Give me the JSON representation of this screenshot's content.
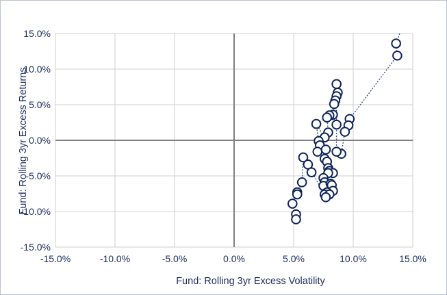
{
  "chart_data": {
    "type": "scatter",
    "title": "",
    "xlabel": "Fund: Rolling 3yr Excess Volatility",
    "ylabel": "Fund: Rolling 3yr Excess Returns",
    "xlim": [
      -15,
      15
    ],
    "ylim": [
      -15,
      15
    ],
    "x_ticks": [
      -15,
      -10,
      -5,
      0,
      5,
      10,
      15
    ],
    "y_ticks": [
      -15,
      -10,
      -5,
      0,
      5,
      10,
      15
    ],
    "x_tick_labels": [
      "-15.0%",
      "-10.0%",
      "-5.0%",
      "0.0%",
      "5.0%",
      "10.0%",
      "15.0%"
    ],
    "y_tick_labels": [
      "-15.0%",
      "-10.0%",
      "-5.0%",
      "0.0%",
      "5.0%",
      "10.0%",
      "15.0%"
    ],
    "grid": true,
    "legend": "none",
    "colors": {
      "marker": "#0d2358",
      "line": "#3a4f86",
      "grid": "#cfcfcf",
      "zero_axis": "#7f7f7f",
      "text": "#1a2a5c"
    },
    "connect_points": true,
    "points": [
      {
        "x": 13.6,
        "y": 13.6
      },
      {
        "x": 13.7,
        "y": 11.9
      },
      {
        "x": 9.7,
        "y": 3.0
      },
      {
        "x": 9.6,
        "y": 2.1
      },
      {
        "x": 9.3,
        "y": 1.2
      },
      {
        "x": 9.0,
        "y": -1.9
      },
      {
        "x": 8.6,
        "y": -1.6
      },
      {
        "x": 8.6,
        "y": 7.9
      },
      {
        "x": 8.7,
        "y": 6.7
      },
      {
        "x": 8.6,
        "y": 6.2
      },
      {
        "x": 8.5,
        "y": 5.6
      },
      {
        "x": 8.4,
        "y": 5.1
      },
      {
        "x": 8.3,
        "y": 3.6
      },
      {
        "x": 8.6,
        "y": 2.2
      },
      {
        "x": 8.0,
        "y": 3.5
      },
      {
        "x": 7.8,
        "y": 3.2
      },
      {
        "x": 7.9,
        "y": 1.1
      },
      {
        "x": 7.6,
        "y": 0.4
      },
      {
        "x": 6.9,
        "y": 2.3
      },
      {
        "x": 7.1,
        "y": -0.1
      },
      {
        "x": 7.2,
        "y": -0.7
      },
      {
        "x": 7.0,
        "y": -1.6
      },
      {
        "x": 7.7,
        "y": -1.3
      },
      {
        "x": 7.6,
        "y": -2.6
      },
      {
        "x": 7.8,
        "y": -3.0
      },
      {
        "x": 7.9,
        "y": -3.9
      },
      {
        "x": 8.0,
        "y": -4.3
      },
      {
        "x": 8.3,
        "y": -4.6
      },
      {
        "x": 7.9,
        "y": -4.6
      },
      {
        "x": 7.5,
        "y": -5.3
      },
      {
        "x": 7.6,
        "y": -5.9
      },
      {
        "x": 7.5,
        "y": -6.4
      },
      {
        "x": 8.1,
        "y": -6.1
      },
      {
        "x": 8.2,
        "y": -6.3
      },
      {
        "x": 8.3,
        "y": -7.1
      },
      {
        "x": 7.8,
        "y": -7.3
      },
      {
        "x": 7.6,
        "y": -7.6
      },
      {
        "x": 8.0,
        "y": -7.6
      },
      {
        "x": 7.7,
        "y": -8.0
      },
      {
        "x": 6.2,
        "y": -3.4
      },
      {
        "x": 6.5,
        "y": -4.5
      },
      {
        "x": 5.8,
        "y": -2.4
      },
      {
        "x": 5.7,
        "y": -5.9
      },
      {
        "x": 5.3,
        "y": -7.3
      },
      {
        "x": 5.3,
        "y": -7.6
      },
      {
        "x": 4.9,
        "y": -8.9
      },
      {
        "x": 5.2,
        "y": -10.4
      },
      {
        "x": 5.2,
        "y": -11.1
      }
    ]
  }
}
